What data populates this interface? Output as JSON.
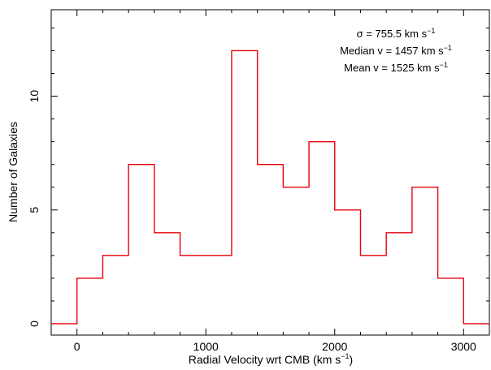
{
  "chart_data": {
    "type": "bar",
    "subtype": "step-histogram",
    "title": "",
    "xlabel": "Radial Velocity wrt CMB (km s",
    "xlabel_sup": "−1",
    "xlabel_end": ")",
    "ylabel": "Number of Galaxies",
    "xlim": [
      -200,
      3200
    ],
    "ylim": [
      -0.5,
      13.8
    ],
    "x_ticks": [
      0,
      1000,
      2000,
      3000
    ],
    "x_tick_labels": [
      "0",
      "1000",
      "2000",
      "3000"
    ],
    "y_ticks": [
      0,
      5,
      10
    ],
    "y_tick_labels": [
      "0",
      "5",
      "10"
    ],
    "grid": false,
    "line_color": "#e8000b",
    "bin_edges": [
      -200,
      0,
      200,
      400,
      600,
      800,
      1000,
      1200,
      1400,
      1600,
      1800,
      2000,
      2200,
      2400,
      2600,
      2800,
      3000,
      3200
    ],
    "values": [
      0,
      2,
      3,
      7,
      4,
      3,
      3,
      12,
      7,
      6,
      8,
      5,
      3,
      4,
      6,
      2,
      0
    ],
    "annotations": [
      {
        "text": "σ = 755.5 km s",
        "sup": "−1"
      },
      {
        "text": "Median v = 1457 km s",
        "sup": "−1"
      },
      {
        "text": "Mean v = 1525 km s",
        "sup": "−1"
      }
    ]
  }
}
